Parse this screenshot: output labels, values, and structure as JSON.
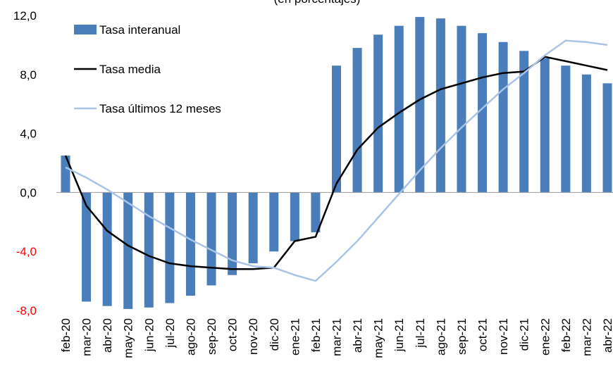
{
  "chart_data": {
    "type": "bar_line",
    "subtitle": "(en porcentajes)",
    "categories": [
      "feb-20",
      "mar-20",
      "abr-20",
      "may-20",
      "jun-20",
      "jul-20",
      "ago-20",
      "sep-20",
      "oct-20",
      "nov-20",
      "dic-20",
      "ene-21",
      "feb-21",
      "mar-21",
      "abr-21",
      "may-21",
      "jun-21",
      "jul-21",
      "ago-21",
      "sep-21",
      "oct-21",
      "nov-21",
      "dic-21",
      "ene-22",
      "feb-22",
      "mar-22",
      "abr-22"
    ],
    "series": [
      {
        "name": "Tasa interanual",
        "kind": "bar",
        "color": "#4a7ebb",
        "values": [
          2.5,
          -7.4,
          -7.7,
          -7.9,
          -7.8,
          -7.5,
          -7.0,
          -6.3,
          -5.6,
          -4.8,
          -4.0,
          -3.3,
          -2.7,
          8.6,
          9.8,
          10.7,
          11.3,
          11.9,
          11.8,
          11.3,
          10.8,
          10.2,
          9.6,
          9.1,
          8.6,
          8.0,
          7.4
        ]
      },
      {
        "name": "Tasa media",
        "kind": "line",
        "color": "#000000",
        "values": [
          2.5,
          -0.9,
          -2.6,
          -3.6,
          -4.3,
          -4.8,
          -5.0,
          -5.1,
          -5.2,
          -5.2,
          -5.1,
          -3.3,
          -3.0,
          0.6,
          2.9,
          4.4,
          5.4,
          6.3,
          7.0,
          7.4,
          7.8,
          8.1,
          8.2,
          9.2,
          8.9,
          8.6,
          8.3
        ]
      },
      {
        "name": "Tasa últimos 12 meses",
        "kind": "line",
        "color": "#a9c4e8",
        "values": [
          1.7,
          1.0,
          0.2,
          -0.7,
          -1.6,
          -2.4,
          -3.2,
          -3.9,
          -4.6,
          -5.0,
          -5.1,
          -5.6,
          -6.0,
          -4.7,
          -3.3,
          -1.7,
          -0.1,
          1.5,
          3.0,
          4.4,
          5.7,
          7.0,
          8.1,
          9.3,
          10.3,
          10.2,
          10.0
        ]
      }
    ],
    "ylim": [
      -8,
      12
    ],
    "yticks": [
      {
        "value": -8,
        "label": "-8,0"
      },
      {
        "value": -4,
        "label": "-4,0"
      },
      {
        "value": 0,
        "label": "0,0"
      },
      {
        "value": 4,
        "label": "4,0"
      },
      {
        "value": 8,
        "label": "8,0"
      },
      {
        "value": 12,
        "label": "12,0"
      }
    ],
    "negative_tick_color": "#ff0000",
    "legend": "upper left"
  }
}
